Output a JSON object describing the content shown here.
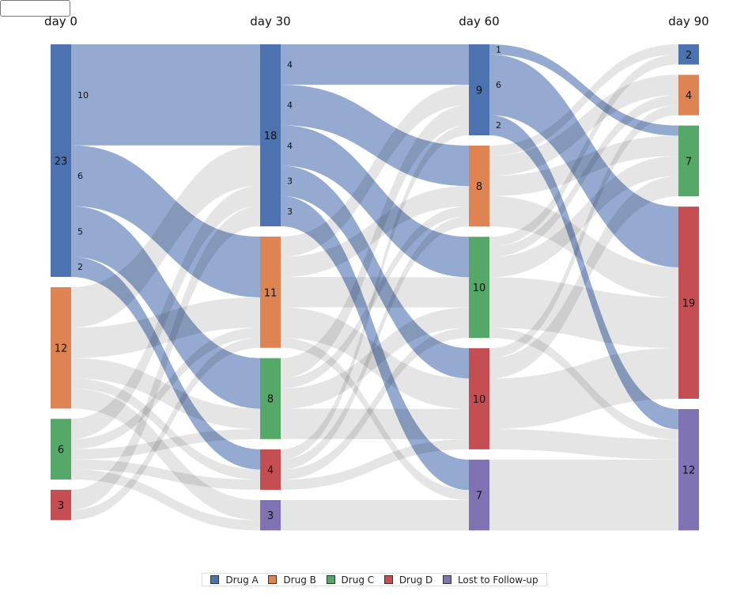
{
  "columns": [
    "day 0",
    "day 30",
    "day 60",
    "day 90"
  ],
  "categories": [
    {
      "key": "A",
      "label": "Drug A",
      "color": "#4c72b0"
    },
    {
      "key": "B",
      "label": "Drug B",
      "color": "#dd8452"
    },
    {
      "key": "C",
      "label": "Drug C",
      "color": "#55a868"
    },
    {
      "key": "D",
      "label": "Drug D",
      "color": "#c44e52"
    },
    {
      "key": "L",
      "label": "Lost to Follow-up",
      "color": "#8172b3"
    }
  ],
  "highlight_link_color": "rgba(76,114,176,0.6)",
  "default_link_color": "rgba(0,0,0,0.1)",
  "chart_data": {
    "type": "sankey",
    "nodes": [
      [
        {
          "cat": "A",
          "value": 23
        },
        {
          "cat": "B",
          "value": 12
        },
        {
          "cat": "C",
          "value": 6
        },
        {
          "cat": "D",
          "value": 3
        }
      ],
      [
        {
          "cat": "A",
          "value": 18
        },
        {
          "cat": "B",
          "value": 11
        },
        {
          "cat": "C",
          "value": 8
        },
        {
          "cat": "D",
          "value": 4
        },
        {
          "cat": "L",
          "value": 3
        }
      ],
      [
        {
          "cat": "A",
          "value": 9
        },
        {
          "cat": "B",
          "value": 8
        },
        {
          "cat": "C",
          "value": 10
        },
        {
          "cat": "D",
          "value": 10
        },
        {
          "cat": "L",
          "value": 7
        }
      ],
      [
        {
          "cat": "A",
          "value": 2
        },
        {
          "cat": "B",
          "value": 4
        },
        {
          "cat": "C",
          "value": 7
        },
        {
          "cat": "D",
          "value": 19
        },
        {
          "cat": "L",
          "value": 12
        }
      ]
    ],
    "links": [
      {
        "col": 0,
        "from": "A",
        "to": "A",
        "value": 10,
        "highlight": true
      },
      {
        "col": 0,
        "from": "A",
        "to": "B",
        "value": 6,
        "highlight": true
      },
      {
        "col": 0,
        "from": "A",
        "to": "C",
        "value": 5,
        "highlight": true
      },
      {
        "col": 0,
        "from": "A",
        "to": "D",
        "value": 2,
        "highlight": true
      },
      {
        "col": 0,
        "from": "B",
        "to": "A",
        "value": 4
      },
      {
        "col": 0,
        "from": "B",
        "to": "B",
        "value": 3
      },
      {
        "col": 0,
        "from": "B",
        "to": "C",
        "value": 2
      },
      {
        "col": 0,
        "from": "B",
        "to": "D",
        "value": 1
      },
      {
        "col": 0,
        "from": "B",
        "to": "L",
        "value": 2
      },
      {
        "col": 0,
        "from": "C",
        "to": "A",
        "value": 2
      },
      {
        "col": 0,
        "from": "C",
        "to": "B",
        "value": 1
      },
      {
        "col": 0,
        "from": "C",
        "to": "C",
        "value": 1
      },
      {
        "col": 0,
        "from": "C",
        "to": "D",
        "value": 1
      },
      {
        "col": 0,
        "from": "C",
        "to": "L",
        "value": 1
      },
      {
        "col": 0,
        "from": "D",
        "to": "A",
        "value": 2
      },
      {
        "col": 0,
        "from": "D",
        "to": "B",
        "value": 1
      },
      {
        "col": 1,
        "from": "A",
        "to": "A",
        "value": 4,
        "highlight": true
      },
      {
        "col": 1,
        "from": "A",
        "to": "B",
        "value": 4,
        "highlight": true
      },
      {
        "col": 1,
        "from": "A",
        "to": "C",
        "value": 4,
        "highlight": true
      },
      {
        "col": 1,
        "from": "A",
        "to": "D",
        "value": 3,
        "highlight": true
      },
      {
        "col": 1,
        "from": "A",
        "to": "L",
        "value": 3,
        "highlight": true
      },
      {
        "col": 1,
        "from": "B",
        "to": "A",
        "value": 2
      },
      {
        "col": 1,
        "from": "B",
        "to": "B",
        "value": 2
      },
      {
        "col": 1,
        "from": "B",
        "to": "C",
        "value": 3
      },
      {
        "col": 1,
        "from": "B",
        "to": "D",
        "value": 3
      },
      {
        "col": 1,
        "from": "B",
        "to": "L",
        "value": 1
      },
      {
        "col": 1,
        "from": "C",
        "to": "A",
        "value": 2
      },
      {
        "col": 1,
        "from": "C",
        "to": "B",
        "value": 1
      },
      {
        "col": 1,
        "from": "C",
        "to": "C",
        "value": 2
      },
      {
        "col": 1,
        "from": "C",
        "to": "D",
        "value": 3
      },
      {
        "col": 1,
        "from": "D",
        "to": "A",
        "value": 1
      },
      {
        "col": 1,
        "from": "D",
        "to": "B",
        "value": 1
      },
      {
        "col": 1,
        "from": "D",
        "to": "C",
        "value": 1
      },
      {
        "col": 1,
        "from": "D",
        "to": "D",
        "value": 1
      },
      {
        "col": 1,
        "from": "L",
        "to": "L",
        "value": 3
      },
      {
        "col": 2,
        "from": "A",
        "to": "C",
        "value": 1,
        "highlight": true
      },
      {
        "col": 2,
        "from": "A",
        "to": "D",
        "value": 6,
        "highlight": true
      },
      {
        "col": 2,
        "from": "A",
        "to": "L",
        "value": 2,
        "highlight": true
      },
      {
        "col": 2,
        "from": "B",
        "to": "A",
        "value": 1
      },
      {
        "col": 2,
        "from": "B",
        "to": "B",
        "value": 2
      },
      {
        "col": 2,
        "from": "B",
        "to": "C",
        "value": 2
      },
      {
        "col": 2,
        "from": "B",
        "to": "D",
        "value": 3
      },
      {
        "col": 2,
        "from": "C",
        "to": "A",
        "value": 1
      },
      {
        "col": 2,
        "from": "C",
        "to": "B",
        "value": 1
      },
      {
        "col": 2,
        "from": "C",
        "to": "C",
        "value": 2
      },
      {
        "col": 2,
        "from": "C",
        "to": "D",
        "value": 5
      },
      {
        "col": 2,
        "from": "C",
        "to": "L",
        "value": 1
      },
      {
        "col": 2,
        "from": "D",
        "to": "B",
        "value": 1
      },
      {
        "col": 2,
        "from": "D",
        "to": "C",
        "value": 2
      },
      {
        "col": 2,
        "from": "D",
        "to": "D",
        "value": 5
      },
      {
        "col": 2,
        "from": "D",
        "to": "L",
        "value": 2
      },
      {
        "col": 2,
        "from": "L",
        "to": "L",
        "value": 7
      }
    ]
  }
}
